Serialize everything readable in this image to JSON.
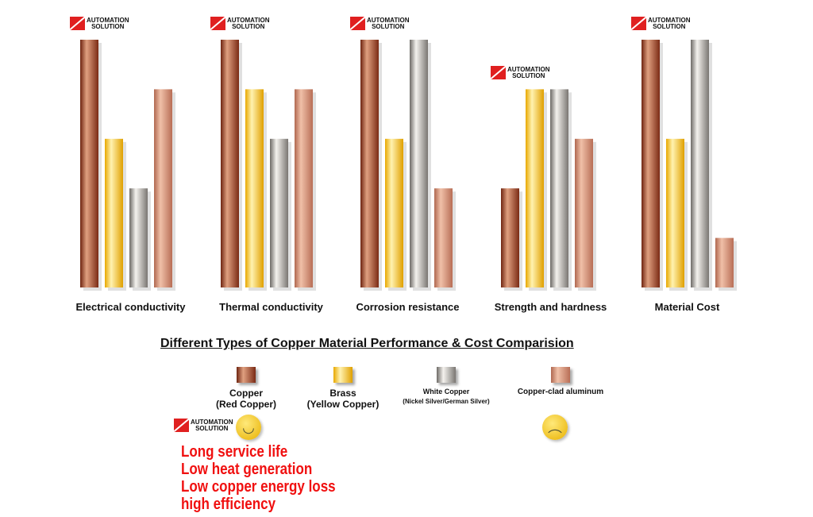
{
  "chart_data": {
    "type": "bar",
    "title": "Different Types of Copper Material Performance & Cost Comparision",
    "categories": [
      "Electrical conductivity",
      "Thermal conductivity",
      "Corrosion resistance",
      "Strength and hardness",
      "Material Cost"
    ],
    "series": [
      {
        "name": "Copper (Red Copper)",
        "values": [
          5,
          5,
          5,
          2,
          5
        ],
        "colors": [
          "#6e2410",
          "#e0a080",
          "#7a2a14"
        ]
      },
      {
        "name": "Brass (Yellow Copper)",
        "values": [
          3,
          4,
          3,
          4,
          3
        ],
        "colors": [
          "#e8a800",
          "#fff2b0",
          "#e0a000"
        ]
      },
      {
        "name": "White Copper (Nickel Silver/German Silver)",
        "values": [
          2,
          3,
          5,
          4,
          5
        ],
        "colors": [
          "#6d6a66",
          "#f4f2ee",
          "#7a7672"
        ]
      },
      {
        "name": "Copper-clad aluminum",
        "values": [
          4,
          4,
          2,
          3,
          1
        ],
        "colors": [
          "#b06850",
          "#f0c0a8",
          "#b86e56"
        ]
      }
    ],
    "ylim": [
      0,
      5
    ],
    "grid": false,
    "legend": "bottom"
  },
  "legend": [
    {
      "l1": "Copper",
      "l2": "(Red Copper)"
    },
    {
      "l1": "Brass",
      "l2": "(Yellow Copper)"
    },
    {
      "l1": "White Copper",
      "l2": "(Nickel Silver/German Silver)"
    },
    {
      "l1": "Copper-clad aluminum",
      "l2": ""
    }
  ],
  "logo": {
    "l1": "AUTOMATION",
    "l2": "SOLUTION"
  },
  "benefits": [
    "Long service life",
    "Low heat generation",
    "Low copper energy loss",
    "high efficiency"
  ]
}
